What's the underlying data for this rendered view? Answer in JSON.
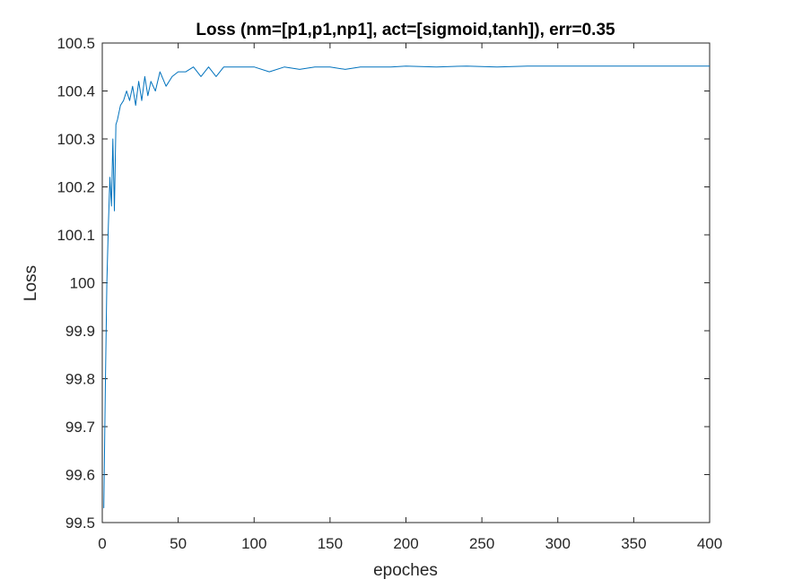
{
  "chart_data": {
    "type": "line",
    "title": "Loss (nm=[p1,p1,np1], act=[sigmoid,tanh]), err=0.35",
    "xlabel": "epoches",
    "ylabel": "Loss",
    "xlim": [
      0,
      400
    ],
    "ylim": [
      99.5,
      100.5
    ],
    "xticks": [
      0,
      50,
      100,
      150,
      200,
      250,
      300,
      350,
      400
    ],
    "xtick_labels": [
      "0",
      "50",
      "100",
      "150",
      "200",
      "250",
      "300",
      "350",
      "400"
    ],
    "yticks": [
      99.5,
      99.6,
      99.7,
      99.8,
      99.9,
      100,
      100.1,
      100.2,
      100.3,
      100.4,
      100.5
    ],
    "ytick_labels": [
      "99.5",
      "99.6",
      "99.7",
      "99.8",
      "99.9",
      "100",
      "100.1",
      "100.2",
      "100.3",
      "100.4",
      "100.5"
    ],
    "grid": false,
    "legend": false,
    "line_color": "#0072BD",
    "series": [
      {
        "x": [
          1,
          2,
          3,
          4,
          5,
          6,
          7,
          8,
          9,
          10,
          12,
          14,
          16,
          18,
          20,
          22,
          24,
          26,
          28,
          30,
          32,
          35,
          38,
          42,
          46,
          50,
          55,
          60,
          65,
          70,
          75,
          80,
          90,
          100,
          110,
          120,
          130,
          140,
          150,
          160,
          170,
          180,
          190,
          200,
          220,
          240,
          260,
          280,
          300,
          320,
          340,
          360,
          380,
          400
        ],
        "y": [
          99.53,
          99.78,
          100.0,
          100.12,
          100.22,
          100.16,
          100.3,
          100.15,
          100.33,
          100.34,
          100.37,
          100.38,
          100.4,
          100.38,
          100.41,
          100.37,
          100.42,
          100.38,
          100.43,
          100.39,
          100.42,
          100.4,
          100.44,
          100.41,
          100.43,
          100.44,
          100.44,
          100.45,
          100.43,
          100.45,
          100.43,
          100.45,
          100.45,
          100.45,
          100.44,
          100.45,
          100.445,
          100.45,
          100.45,
          100.445,
          100.45,
          100.45,
          100.45,
          100.452,
          100.45,
          100.452,
          100.45,
          100.452,
          100.452,
          100.452,
          100.452,
          100.452,
          100.452,
          100.452
        ]
      }
    ]
  }
}
